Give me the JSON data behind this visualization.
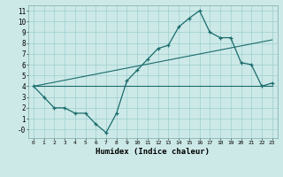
{
  "xlabel": "Humidex (Indice chaleur)",
  "bg_color": "#cce9e8",
  "grid_color": "#9dcece",
  "line_color": "#1a6b6b",
  "xlim": [
    -0.5,
    23.5
  ],
  "ylim": [
    -0.8,
    11.5
  ],
  "xticks": [
    0,
    1,
    2,
    3,
    4,
    5,
    6,
    7,
    8,
    9,
    10,
    11,
    12,
    13,
    14,
    15,
    16,
    17,
    18,
    19,
    20,
    21,
    22,
    23
  ],
  "yticks": [
    0,
    1,
    2,
    3,
    4,
    5,
    6,
    7,
    8,
    9,
    10,
    11
  ],
  "ytick_labels": [
    "-0",
    "1",
    "2",
    "3",
    "4",
    "5",
    "6",
    "7",
    "8",
    "9",
    "10",
    "11"
  ],
  "line1_x": [
    0,
    1,
    2,
    3,
    4,
    5,
    6,
    7,
    8,
    9,
    10,
    11,
    12,
    13,
    14,
    15,
    16,
    17,
    18,
    19,
    20,
    21,
    22,
    23
  ],
  "line1_y": [
    4.0,
    3.0,
    2.0,
    2.0,
    1.5,
    1.5,
    0.5,
    -0.3,
    1.5,
    4.5,
    5.5,
    6.5,
    7.5,
    7.8,
    9.5,
    10.3,
    11.0,
    9.0,
    8.5,
    8.5,
    6.2,
    6.0,
    4.0,
    4.3
  ],
  "line2_x": [
    0,
    23
  ],
  "line2_y": [
    4.0,
    4.0
  ],
  "line3_x": [
    0,
    23
  ],
  "line3_y": [
    4.0,
    8.3
  ]
}
